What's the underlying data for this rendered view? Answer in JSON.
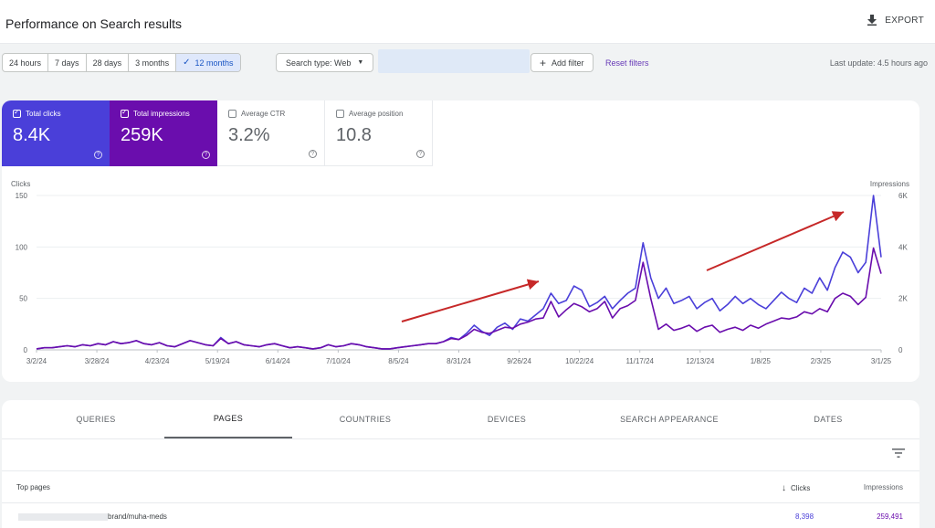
{
  "header": {
    "title": "Performance on Search results",
    "export_label": "EXPORT"
  },
  "toolbar": {
    "date_ranges": [
      "24 hours",
      "7 days",
      "28 days",
      "3 months",
      "12 months"
    ],
    "selected_range": "12 months",
    "search_type_label": "Search type: Web",
    "add_filter_label": "Add filter",
    "reset_filters_label": "Reset filters",
    "last_update": "Last update: 4.5 hours ago"
  },
  "metrics": {
    "clicks": {
      "label": "Total clicks",
      "value": "8.4K",
      "checked": true,
      "color": "#4a3fd9"
    },
    "impressions": {
      "label": "Total impressions",
      "value": "259K",
      "checked": true,
      "color": "#6a0dad"
    },
    "ctr": {
      "label": "Average CTR",
      "value": "3.2%",
      "checked": false
    },
    "position": {
      "label": "Average position",
      "value": "10.8",
      "checked": false
    }
  },
  "chart_data": {
    "type": "line",
    "left_axis_label": "Clicks",
    "right_axis_label": "Impressions",
    "y_ticks_left": [
      "150",
      "100",
      "50",
      "0"
    ],
    "y_ticks_right": [
      "6K",
      "4K",
      "2K",
      "0"
    ],
    "ylim_left": [
      0,
      150
    ],
    "ylim_right": [
      0,
      6000
    ],
    "x_ticks": [
      "3/2/24",
      "3/28/24",
      "4/23/24",
      "5/19/24",
      "6/14/24",
      "7/10/24",
      "8/5/24",
      "8/31/24",
      "9/26/24",
      "10/22/24",
      "11/17/24",
      "12/13/24",
      "1/8/25",
      "2/3/25",
      "3/1/25"
    ],
    "series": [
      {
        "metric": "clicks",
        "color": "#4a3fd9",
        "values": [
          1,
          2,
          2,
          3,
          4,
          3,
          5,
          4,
          6,
          5,
          8,
          6,
          7,
          9,
          6,
          5,
          7,
          4,
          3,
          6,
          9,
          7,
          5,
          4,
          12,
          6,
          8,
          5,
          4,
          3,
          5,
          6,
          4,
          2,
          3,
          2,
          1,
          2,
          5,
          3,
          4,
          6,
          5,
          3,
          2,
          1,
          1,
          2,
          3,
          4,
          5,
          6,
          6,
          8,
          12,
          10,
          16,
          24,
          18,
          14,
          22,
          26,
          20,
          30,
          28,
          34,
          40,
          55,
          45,
          48,
          62,
          58,
          42,
          46,
          52,
          40,
          48,
          55,
          60,
          104,
          70,
          50,
          60,
          45,
          48,
          52,
          40,
          46,
          50,
          38,
          44,
          52,
          45,
          50,
          44,
          40,
          48,
          56,
          50,
          46,
          60,
          55,
          70,
          58,
          80,
          95,
          90,
          75,
          85,
          150,
          90
        ]
      },
      {
        "metric": "impressions",
        "color": "#6a0dad",
        "values": [
          40,
          80,
          80,
          120,
          160,
          120,
          200,
          160,
          240,
          200,
          320,
          240,
          280,
          360,
          240,
          200,
          280,
          160,
          120,
          240,
          360,
          280,
          200,
          160,
          440,
          240,
          320,
          200,
          160,
          120,
          200,
          240,
          160,
          80,
          120,
          80,
          40,
          80,
          200,
          120,
          160,
          240,
          200,
          120,
          80,
          40,
          40,
          80,
          120,
          160,
          200,
          240,
          240,
          320,
          440,
          400,
          560,
          800,
          680,
          640,
          760,
          880,
          840,
          1000,
          1080,
          1200,
          1240,
          1880,
          1280,
          1560,
          1800,
          1680,
          1480,
          1600,
          1880,
          1240,
          1600,
          1720,
          1920,
          3400,
          2000,
          800,
          1000,
          760,
          840,
          960,
          720,
          880,
          960,
          680,
          800,
          880,
          760,
          960,
          840,
          1000,
          1120,
          1240,
          1200,
          1280,
          1480,
          1400,
          1600,
          1480,
          2000,
          2200,
          2080,
          1760,
          2040,
          3960,
          2960
        ]
      }
    ],
    "annotations": [
      "arrow",
      "arrow"
    ]
  },
  "tabs": {
    "items": [
      "QUERIES",
      "PAGES",
      "COUNTRIES",
      "DEVICES",
      "SEARCH APPEARANCE",
      "DATES"
    ],
    "active": "PAGES"
  },
  "table": {
    "headers": {
      "page": "Top pages",
      "clicks": "Clicks",
      "impressions": "Impressions"
    },
    "rows": [
      {
        "page": "brand/muha-meds",
        "clicks": "8,398",
        "impressions": "259,491"
      }
    ]
  }
}
